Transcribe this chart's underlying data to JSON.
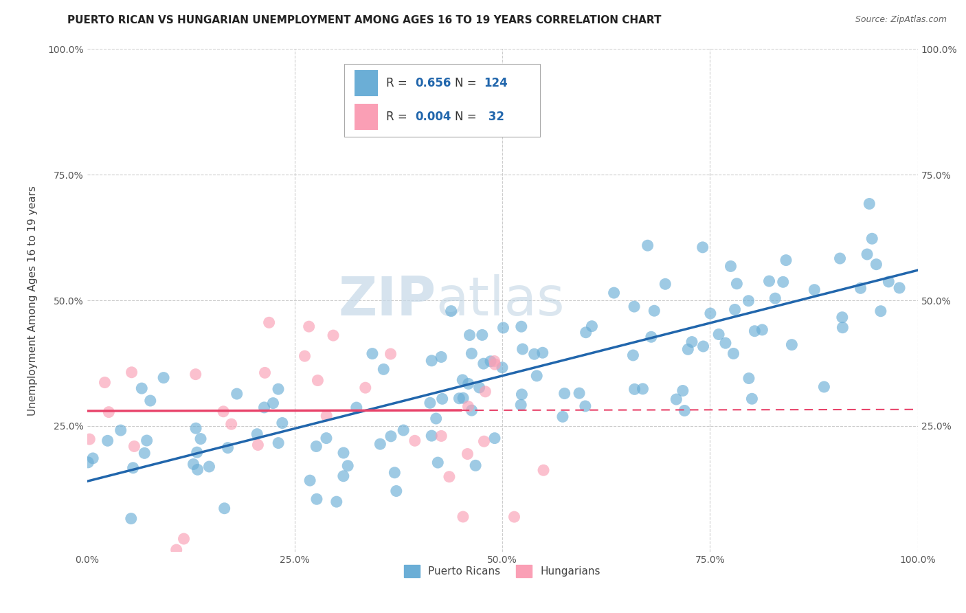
{
  "title": "PUERTO RICAN VS HUNGARIAN UNEMPLOYMENT AMONG AGES 16 TO 19 YEARS CORRELATION CHART",
  "source": "Source: ZipAtlas.com",
  "ylabel": "Unemployment Among Ages 16 to 19 years",
  "xlim": [
    0.0,
    1.0
  ],
  "ylim": [
    0.0,
    1.0
  ],
  "xtick_labels": [
    "0.0%",
    "25.0%",
    "50.0%",
    "75.0%",
    "100.0%"
  ],
  "xtick_vals": [
    0.0,
    0.25,
    0.5,
    0.75,
    1.0
  ],
  "ytick_labels": [
    "25.0%",
    "50.0%",
    "75.0%",
    "100.0%"
  ],
  "ytick_vals": [
    0.25,
    0.5,
    0.75,
    1.0
  ],
  "blue_color": "#6baed6",
  "pink_color": "#fa9fb5",
  "blue_line_color": "#2166ac",
  "pink_line_color": "#e8436a",
  "legend_label1": "Puerto Ricans",
  "legend_label2": "Hungarians",
  "watermark_zip": "ZIP",
  "watermark_atlas": "atlas",
  "watermark_color": "#d8e8f0",
  "background_color": "#ffffff",
  "grid_color": "#cccccc",
  "blue_intercept": 0.14,
  "blue_slope": 0.42,
  "pink_intercept": 0.28,
  "pink_slope": 0.003,
  "value_color": "#2166ac",
  "label_color": "#333333"
}
